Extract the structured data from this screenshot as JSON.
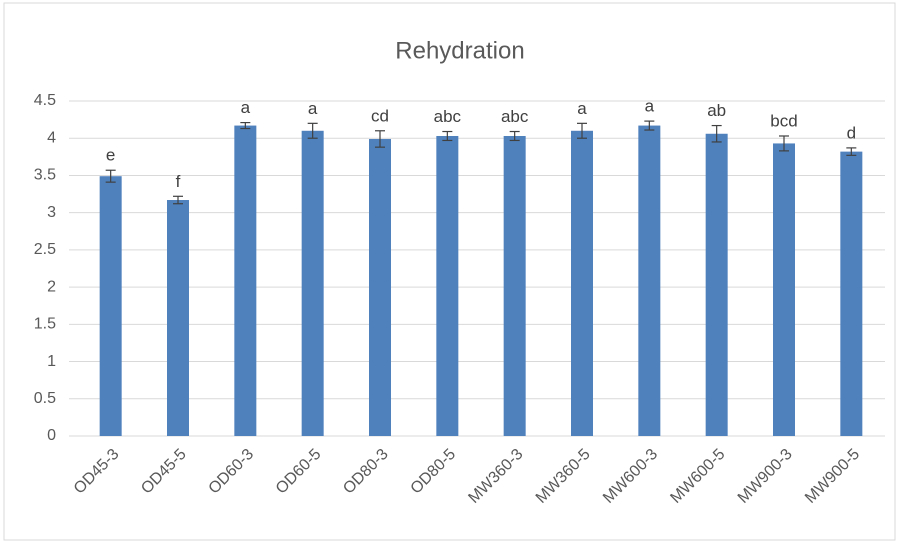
{
  "chart_data": {
    "type": "bar",
    "title": "Rehydration",
    "categories": [
      "OD45-3",
      "OD45-5",
      "OD60-3",
      "OD60-5",
      "OD80-3",
      "OD80-5",
      "MW360-3",
      "MW360-5",
      "MW600-3",
      "MW600-5",
      "MW900-3",
      "MW900-5"
    ],
    "values": [
      3.49,
      3.17,
      4.17,
      4.1,
      3.99,
      4.03,
      4.03,
      4.1,
      4.17,
      4.06,
      3.93,
      3.82
    ],
    "errors": [
      0.08,
      0.05,
      0.04,
      0.1,
      0.11,
      0.06,
      0.06,
      0.1,
      0.06,
      0.11,
      0.1,
      0.05
    ],
    "annotations": [
      "e",
      "f",
      "a",
      "a",
      "cd",
      "abc",
      "abc",
      "a",
      "a",
      "ab",
      "bcd",
      "d"
    ],
    "color": "#4f81bd",
    "ylim": [
      0,
      4.5
    ],
    "yticks": [
      0,
      0.5,
      1,
      1.5,
      2,
      2.5,
      3,
      3.5,
      4,
      4.5
    ],
    "grid": true
  }
}
